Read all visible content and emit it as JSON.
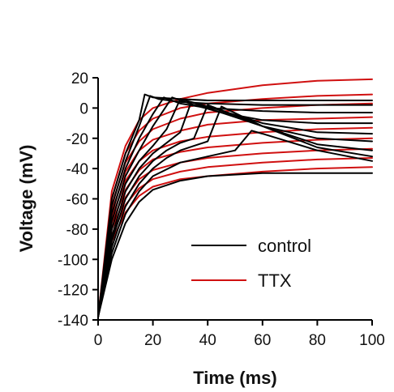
{
  "chart_data": {
    "type": "line",
    "title": "",
    "xlabel": "Time (ms)",
    "ylabel": "Voltage (mV)",
    "xlim": [
      0,
      100
    ],
    "ylim": [
      -140,
      20
    ],
    "xticks": [
      "0",
      "20",
      "40",
      "60",
      "80",
      "100"
    ],
    "yticks": [
      "20",
      "0",
      "-20",
      "-40",
      "-60",
      "-80",
      "-100",
      "-120",
      "-140"
    ],
    "xtick_values": [
      0,
      20,
      40,
      60,
      80,
      100
    ],
    "ytick_values": [
      20,
      0,
      -20,
      -40,
      -60,
      -80,
      -100,
      -120,
      -140
    ],
    "grid": false,
    "legend_position": "center-right",
    "legend": [
      {
        "label": "control",
        "color": "#000000"
      },
      {
        "label": "TTX",
        "color": "#d01010"
      }
    ],
    "series": [
      {
        "group": "control",
        "color": "#000000",
        "x": [
          0,
          5,
          10,
          15,
          17,
          20,
          30,
          40,
          60,
          80,
          100
        ],
        "y": [
          -138,
          -60,
          -30,
          -8,
          9,
          7,
          6,
          5,
          5,
          5,
          5
        ]
      },
      {
        "group": "control",
        "color": "#000000",
        "x": [
          0,
          5,
          10,
          15,
          19,
          22,
          30,
          40,
          60,
          80,
          100
        ],
        "y": [
          -138,
          -65,
          -35,
          -12,
          8,
          6,
          4,
          3,
          2,
          2,
          2
        ]
      },
      {
        "group": "control",
        "color": "#000000",
        "x": [
          0,
          5,
          10,
          15,
          20,
          24,
          30,
          40,
          60,
          80,
          100
        ],
        "y": [
          -138,
          -70,
          -40,
          -20,
          -4,
          7,
          3,
          0,
          -2,
          -3,
          -3
        ]
      },
      {
        "group": "control",
        "color": "#000000",
        "x": [
          0,
          5,
          10,
          15,
          20,
          27,
          35,
          45,
          60,
          80,
          100
        ],
        "y": [
          -138,
          -75,
          -45,
          -28,
          -12,
          7,
          2,
          -3,
          -8,
          -10,
          -10
        ]
      },
      {
        "group": "control",
        "color": "#000000",
        "x": [
          0,
          5,
          10,
          15,
          20,
          25,
          30,
          40,
          60,
          80,
          100
        ],
        "y": [
          -138,
          -80,
          -50,
          -35,
          -25,
          -14,
          6,
          1,
          -10,
          -16,
          -17
        ]
      },
      {
        "group": "control",
        "color": "#000000",
        "x": [
          0,
          5,
          10,
          15,
          20,
          25,
          30,
          34,
          40,
          60,
          80,
          100
        ],
        "y": [
          -138,
          -85,
          -55,
          -40,
          -30,
          -23,
          -16,
          4,
          0,
          -12,
          -20,
          -22
        ]
      },
      {
        "group": "control",
        "color": "#000000",
        "x": [
          0,
          5,
          10,
          15,
          20,
          25,
          30,
          35,
          40,
          60,
          80,
          100
        ],
        "y": [
          -138,
          -88,
          -60,
          -45,
          -35,
          -28,
          -23,
          -20,
          2,
          -12,
          -24,
          -28
        ]
      },
      {
        "group": "control",
        "color": "#000000",
        "x": [
          0,
          5,
          10,
          15,
          20,
          25,
          30,
          35,
          40,
          45,
          60,
          80,
          100
        ],
        "y": [
          -138,
          -92,
          -65,
          -50,
          -40,
          -33,
          -28,
          -25,
          -22,
          1,
          -12,
          -26,
          -32
        ]
      },
      {
        "group": "control",
        "color": "#000000",
        "x": [
          0,
          5,
          10,
          15,
          20,
          30,
          40,
          50,
          56,
          60,
          80,
          100
        ],
        "y": [
          -138,
          -96,
          -70,
          -55,
          -45,
          -36,
          -32,
          -28,
          -15,
          -17,
          -28,
          -35
        ]
      },
      {
        "group": "control",
        "color": "#000000",
        "x": [
          0,
          5,
          10,
          15,
          20,
          30,
          40,
          50,
          60,
          80,
          100
        ],
        "y": [
          -138,
          -100,
          -76,
          -62,
          -54,
          -48,
          -45,
          -44,
          -43,
          -43,
          -43
        ]
      },
      {
        "group": "TTX",
        "color": "#d01010",
        "x": [
          0,
          5,
          10,
          15,
          20,
          30,
          40,
          60,
          80,
          100
        ],
        "y": [
          -138,
          -55,
          -25,
          -8,
          0,
          6,
          10,
          15,
          18,
          19
        ]
      },
      {
        "group": "TTX",
        "color": "#d01010",
        "x": [
          0,
          5,
          10,
          15,
          20,
          30,
          40,
          60,
          80,
          100
        ],
        "y": [
          -138,
          -60,
          -30,
          -15,
          -7,
          0,
          3,
          6,
          8,
          9
        ]
      },
      {
        "group": "TTX",
        "color": "#d01010",
        "x": [
          0,
          5,
          10,
          15,
          20,
          30,
          40,
          60,
          80,
          100
        ],
        "y": [
          -138,
          -64,
          -36,
          -22,
          -14,
          -7,
          -3,
          0,
          2,
          3
        ]
      },
      {
        "group": "TTX",
        "color": "#d01010",
        "x": [
          0,
          5,
          10,
          15,
          20,
          30,
          40,
          60,
          80,
          100
        ],
        "y": [
          -138,
          -68,
          -42,
          -28,
          -21,
          -15,
          -11,
          -8,
          -7,
          -6
        ]
      },
      {
        "group": "TTX",
        "color": "#d01010",
        "x": [
          0,
          5,
          10,
          15,
          20,
          30,
          40,
          60,
          80,
          100
        ],
        "y": [
          -138,
          -72,
          -48,
          -35,
          -28,
          -22,
          -19,
          -16,
          -14,
          -13
        ]
      },
      {
        "group": "TTX",
        "color": "#d01010",
        "x": [
          0,
          5,
          10,
          15,
          20,
          30,
          40,
          60,
          80,
          100
        ],
        "y": [
          -138,
          -76,
          -54,
          -41,
          -34,
          -29,
          -26,
          -23,
          -21,
          -20
        ]
      },
      {
        "group": "TTX",
        "color": "#d01010",
        "x": [
          0,
          5,
          10,
          15,
          20,
          30,
          40,
          60,
          80,
          100
        ],
        "y": [
          -138,
          -80,
          -59,
          -47,
          -41,
          -36,
          -33,
          -30,
          -28,
          -27
        ]
      },
      {
        "group": "TTX",
        "color": "#d01010",
        "x": [
          0,
          5,
          10,
          15,
          20,
          30,
          40,
          60,
          80,
          100
        ],
        "y": [
          -138,
          -84,
          -64,
          -53,
          -47,
          -42,
          -39,
          -36,
          -34,
          -33
        ]
      },
      {
        "group": "TTX",
        "color": "#d01010",
        "x": [
          0,
          5,
          10,
          15,
          20,
          30,
          40,
          60,
          80,
          100
        ],
        "y": [
          -138,
          -88,
          -69,
          -58,
          -52,
          -47,
          -45,
          -42,
          -40,
          -39
        ]
      }
    ]
  }
}
